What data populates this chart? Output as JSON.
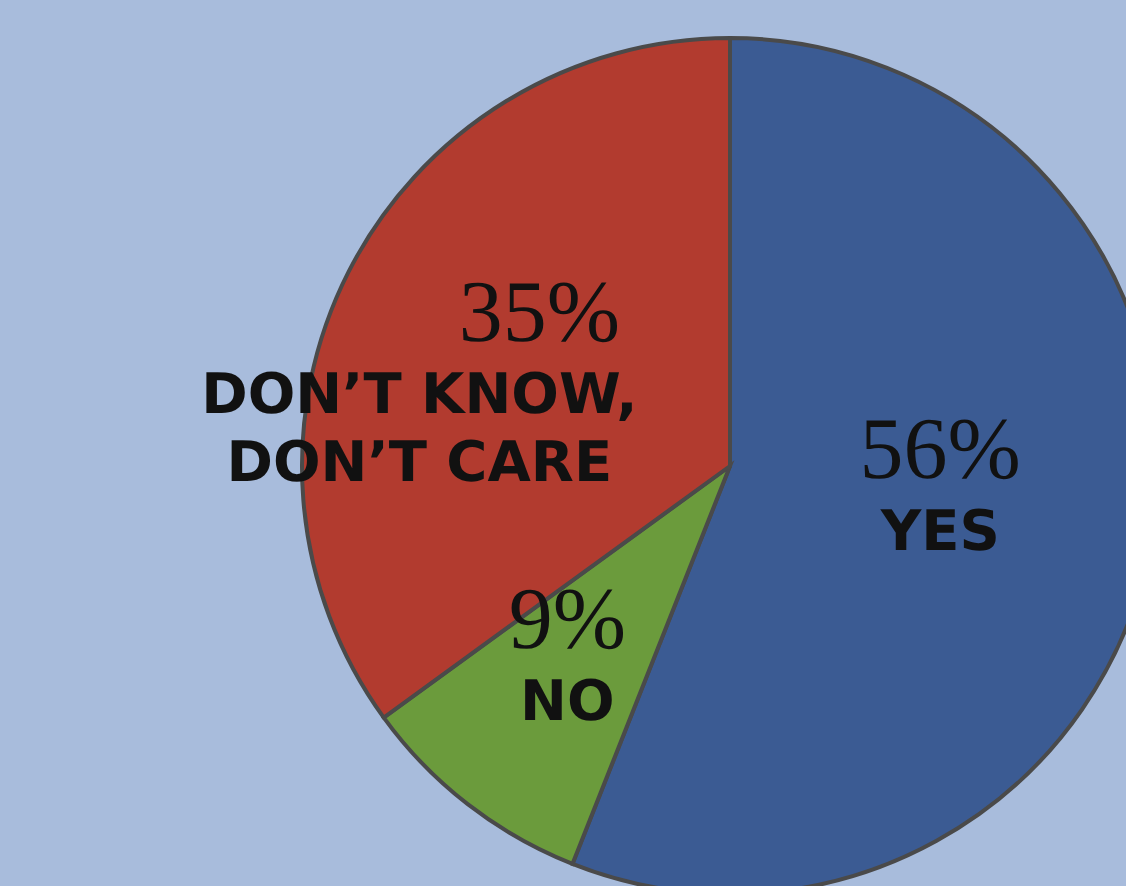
{
  "chart_data": {
    "type": "pie",
    "categories": [
      "YES",
      "NO",
      "DON’T KNOW, DON’T CARE"
    ],
    "values": [
      56,
      9,
      35
    ],
    "colors": [
      "#3b5b93",
      "#6b9b3c",
      "#b23b2f"
    ],
    "value_labels": [
      "56%",
      "9%",
      "35%"
    ]
  }
}
